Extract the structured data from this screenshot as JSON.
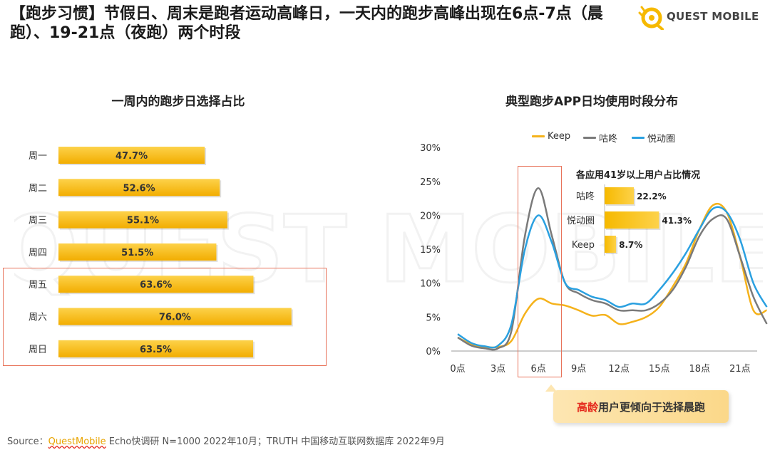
{
  "header": {
    "title": "【跑步习惯】节假日、周末是跑者运动高峰日，一天内的跑步高峰出现在6点-7点（晨跑）、19-21点（夜跑）两个时段",
    "logo_text": "QUEST MOBILE"
  },
  "watermark": "QUEST MOBILE",
  "colors": {
    "bar": "#f6b900",
    "keep": "#f5b21b",
    "gudong": "#7a7a7a",
    "yuedong": "#2aa0e0",
    "highlight": "#e8735a"
  },
  "chart_data": [
    {
      "type": "bar",
      "orientation": "horizontal",
      "title": "一周内的跑步日选择占比",
      "categories": [
        "周一",
        "周二",
        "周三",
        "周四",
        "周五",
        "周六",
        "周日"
      ],
      "values": [
        47.7,
        52.6,
        55.1,
        51.5,
        63.6,
        76.0,
        63.5
      ],
      "labels": [
        "47.7%",
        "52.6%",
        "55.1%",
        "51.5%",
        "63.6%",
        "76.0%",
        "63.5%"
      ],
      "highlighted": [
        "周五",
        "周六",
        "周日"
      ]
    },
    {
      "type": "line",
      "title": "典型跑步APP日均使用时段分布",
      "x": [
        0,
        1,
        2,
        3,
        4,
        5,
        6,
        7,
        8,
        9,
        10,
        11,
        12,
        13,
        14,
        15,
        16,
        17,
        18,
        19,
        20,
        21,
        22,
        23
      ],
      "xticks": [
        0,
        3,
        6,
        9,
        12,
        15,
        18,
        21
      ],
      "xtick_labels": [
        "0点",
        "3点",
        "6点",
        "9点",
        "12点",
        "15点",
        "18点",
        "21点"
      ],
      "yticks": [
        0,
        5,
        10,
        15,
        20,
        25,
        30
      ],
      "ytick_labels": [
        "0%",
        "5%",
        "10%",
        "15%",
        "20%",
        "25%",
        "30%"
      ],
      "ylim": [
        0,
        30
      ],
      "series": [
        {
          "name": "Keep",
          "values": [
            2.0,
            1.0,
            0.6,
            0.6,
            1.5,
            5.5,
            7.7,
            7.0,
            6.7,
            6.0,
            5.2,
            5.3,
            4.0,
            4.3,
            5.0,
            6.5,
            9.5,
            13.0,
            18.0,
            21.5,
            20.5,
            14.0,
            6.0,
            6.0
          ]
        },
        {
          "name": "咕咚",
          "values": [
            2.0,
            0.8,
            0.4,
            0.4,
            3.0,
            17.0,
            24.0,
            17.0,
            10.0,
            8.5,
            7.5,
            7.0,
            6.0,
            6.0,
            6.0,
            7.0,
            9.0,
            12.5,
            17.0,
            19.5,
            19.5,
            14.0,
            8.0,
            4.0
          ]
        },
        {
          "name": "悦动圈",
          "values": [
            2.5,
            1.2,
            0.7,
            0.8,
            4.0,
            15.0,
            20.0,
            16.0,
            10.0,
            9.0,
            8.0,
            7.5,
            6.5,
            7.0,
            7.0,
            9.0,
            11.5,
            14.5,
            18.0,
            21.0,
            20.5,
            16.5,
            10.0,
            6.5
          ]
        }
      ],
      "legend": [
        "Keep",
        "咕咚",
        "悦动圈"
      ],
      "legend_position": "top",
      "highlight_range": [
        "5点",
        "7点"
      ],
      "inset": {
        "type": "bar",
        "title": "各应用41岁以上用户占比情况",
        "categories": [
          "咕咚",
          "悦动圈",
          "Keep"
        ],
        "values": [
          22.2,
          41.3,
          8.7
        ],
        "labels": [
          "22.2%",
          "41.3%",
          "8.7%"
        ]
      }
    }
  ],
  "callout": {
    "accent": "高龄",
    "rest": "用户更倾向于选择晨跑"
  },
  "footer": {
    "prefix": "Source：",
    "brand": "QuestMobile",
    "rest": " Echo快调研 N=1000 2022年10月；TRUTH 中国移动互联网数据库 2022年9月"
  }
}
